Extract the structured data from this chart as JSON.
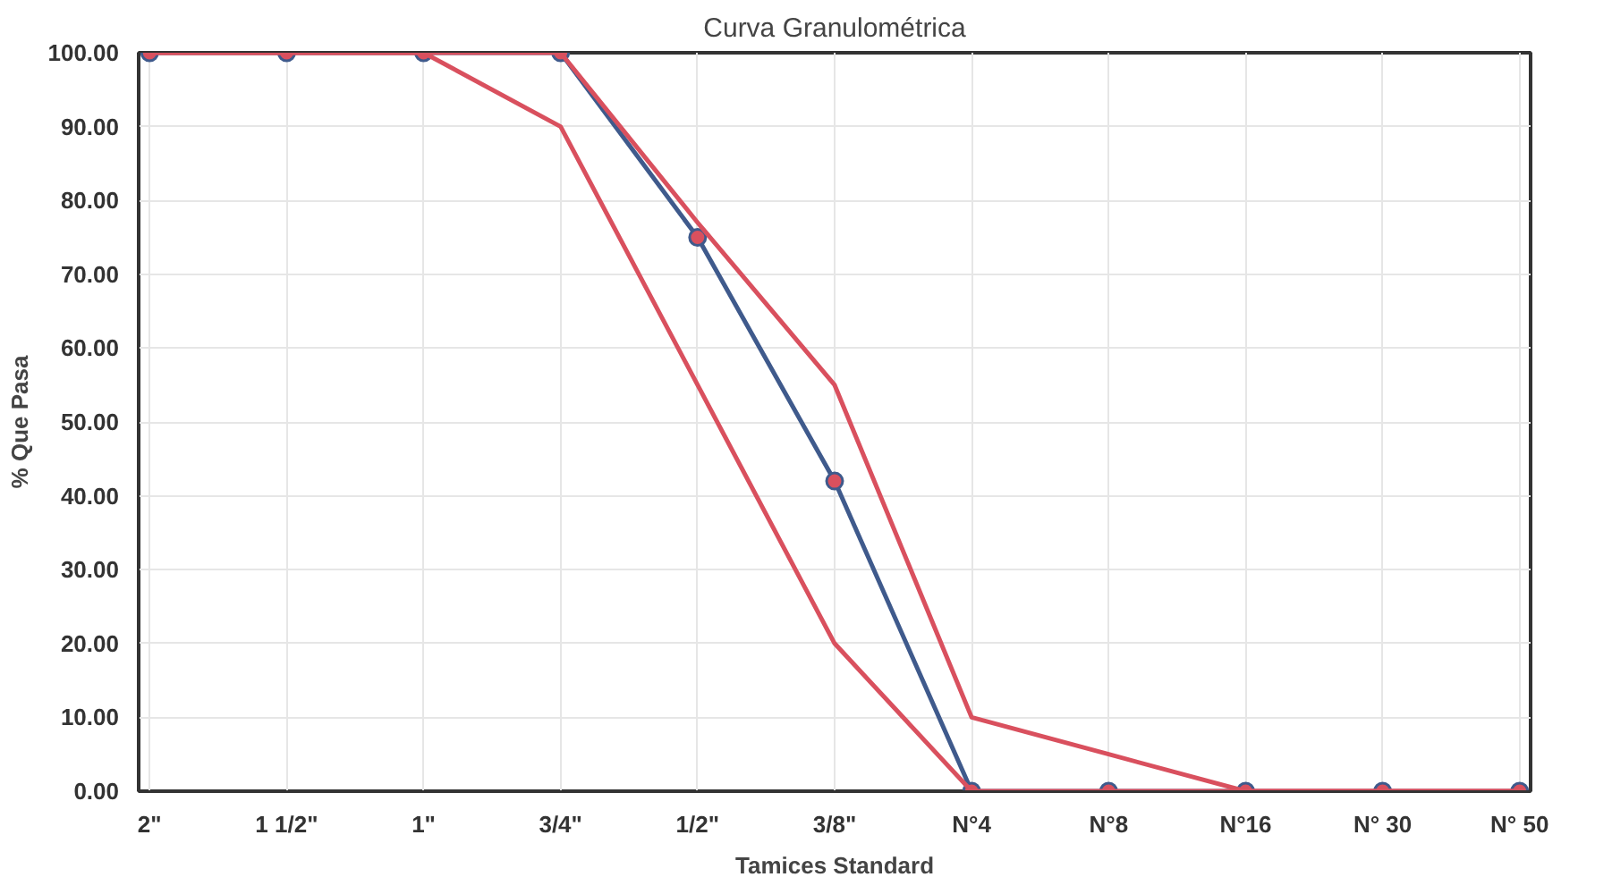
{
  "chart_data": {
    "type": "line",
    "title": "Curva Granulométrica",
    "xlabel": "Tamices Standard",
    "ylabel": "% Que Pasa",
    "categories": [
      "2\"",
      "1 1/2\"",
      "1\"",
      "3/4\"",
      "1/2\"",
      "3/8\"",
      "N°4",
      "N°8",
      "N°16",
      "N° 30",
      "N° 50"
    ],
    "series": [
      {
        "color": "#3f5a8c",
        "marker": "circle",
        "values": [
          100,
          100,
          100,
          100,
          75,
          42,
          0,
          0,
          0,
          0,
          0
        ]
      },
      {
        "color": "#d9505e",
        "marker": "none",
        "values": [
          100,
          100,
          100,
          90,
          55,
          20,
          0,
          0,
          0,
          0,
          0
        ]
      },
      {
        "color": "#d9505e",
        "marker": "none",
        "values": [
          100,
          100,
          100,
          100,
          77,
          55,
          10,
          5,
          0,
          0,
          0
        ]
      }
    ],
    "ylim": [
      0,
      100
    ],
    "yticks": [
      {
        "value": 0,
        "label": "0.00"
      },
      {
        "value": 10,
        "label": "10.00"
      },
      {
        "value": 20,
        "label": "20.00"
      },
      {
        "value": 30,
        "label": "30.00"
      },
      {
        "value": 40,
        "label": "40.00"
      },
      {
        "value": 50,
        "label": "50.00"
      },
      {
        "value": 60,
        "label": "60.00"
      },
      {
        "value": 70,
        "label": "70.00"
      },
      {
        "value": 80,
        "label": "80.00"
      },
      {
        "value": 90,
        "label": "90.00"
      },
      {
        "value": 100,
        "label": "100.00"
      }
    ],
    "grid": true,
    "line_style": "solid"
  }
}
